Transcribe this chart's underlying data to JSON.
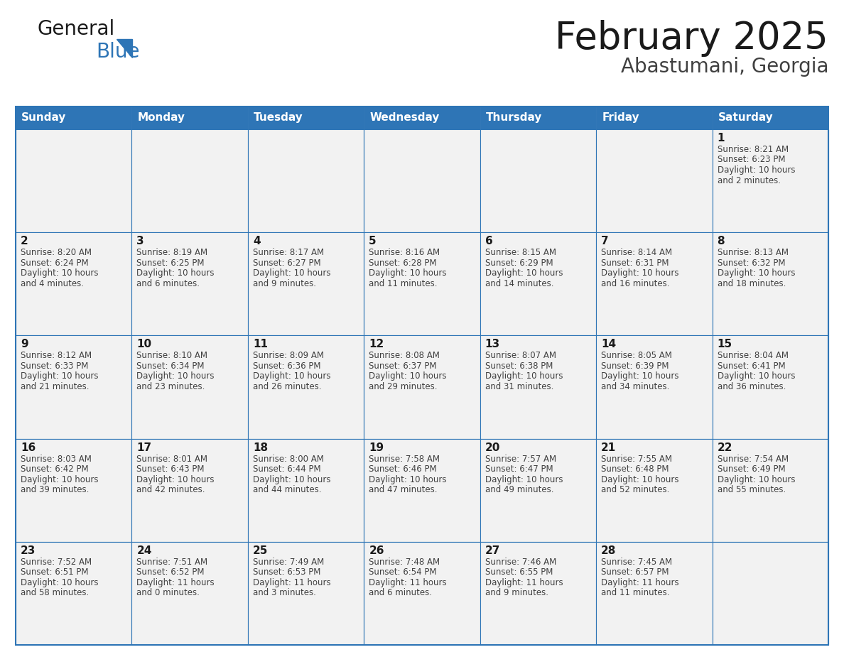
{
  "title": "February 2025",
  "subtitle": "Abastumani, Georgia",
  "days_of_week": [
    "Sunday",
    "Monday",
    "Tuesday",
    "Wednesday",
    "Thursday",
    "Friday",
    "Saturday"
  ],
  "header_bg": "#2E75B6",
  "header_text": "#FFFFFF",
  "cell_bg": "#F2F2F2",
  "cell_border": "#2E75B6",
  "day_num_color": "#1a1a1a",
  "info_text_color": "#404040",
  "title_color": "#1a1a1a",
  "subtitle_color": "#404040",
  "logo_general_color": "#1a1a1a",
  "logo_blue_color": "#2E75B6",
  "calendar_data": [
    [
      null,
      null,
      null,
      null,
      null,
      null,
      {
        "day": 1,
        "sunrise": "8:21 AM",
        "sunset": "6:23 PM",
        "daylight": "10 hours",
        "daylight2": "and 2 minutes."
      }
    ],
    [
      {
        "day": 2,
        "sunrise": "8:20 AM",
        "sunset": "6:24 PM",
        "daylight": "10 hours",
        "daylight2": "and 4 minutes."
      },
      {
        "day": 3,
        "sunrise": "8:19 AM",
        "sunset": "6:25 PM",
        "daylight": "10 hours",
        "daylight2": "and 6 minutes."
      },
      {
        "day": 4,
        "sunrise": "8:17 AM",
        "sunset": "6:27 PM",
        "daylight": "10 hours",
        "daylight2": "and 9 minutes."
      },
      {
        "day": 5,
        "sunrise": "8:16 AM",
        "sunset": "6:28 PM",
        "daylight": "10 hours",
        "daylight2": "and 11 minutes."
      },
      {
        "day": 6,
        "sunrise": "8:15 AM",
        "sunset": "6:29 PM",
        "daylight": "10 hours",
        "daylight2": "and 14 minutes."
      },
      {
        "day": 7,
        "sunrise": "8:14 AM",
        "sunset": "6:31 PM",
        "daylight": "10 hours",
        "daylight2": "and 16 minutes."
      },
      {
        "day": 8,
        "sunrise": "8:13 AM",
        "sunset": "6:32 PM",
        "daylight": "10 hours",
        "daylight2": "and 18 minutes."
      }
    ],
    [
      {
        "day": 9,
        "sunrise": "8:12 AM",
        "sunset": "6:33 PM",
        "daylight": "10 hours",
        "daylight2": "and 21 minutes."
      },
      {
        "day": 10,
        "sunrise": "8:10 AM",
        "sunset": "6:34 PM",
        "daylight": "10 hours",
        "daylight2": "and 23 minutes."
      },
      {
        "day": 11,
        "sunrise": "8:09 AM",
        "sunset": "6:36 PM",
        "daylight": "10 hours",
        "daylight2": "and 26 minutes."
      },
      {
        "day": 12,
        "sunrise": "8:08 AM",
        "sunset": "6:37 PM",
        "daylight": "10 hours",
        "daylight2": "and 29 minutes."
      },
      {
        "day": 13,
        "sunrise": "8:07 AM",
        "sunset": "6:38 PM",
        "daylight": "10 hours",
        "daylight2": "and 31 minutes."
      },
      {
        "day": 14,
        "sunrise": "8:05 AM",
        "sunset": "6:39 PM",
        "daylight": "10 hours",
        "daylight2": "and 34 minutes."
      },
      {
        "day": 15,
        "sunrise": "8:04 AM",
        "sunset": "6:41 PM",
        "daylight": "10 hours",
        "daylight2": "and 36 minutes."
      }
    ],
    [
      {
        "day": 16,
        "sunrise": "8:03 AM",
        "sunset": "6:42 PM",
        "daylight": "10 hours",
        "daylight2": "and 39 minutes."
      },
      {
        "day": 17,
        "sunrise": "8:01 AM",
        "sunset": "6:43 PM",
        "daylight": "10 hours",
        "daylight2": "and 42 minutes."
      },
      {
        "day": 18,
        "sunrise": "8:00 AM",
        "sunset": "6:44 PM",
        "daylight": "10 hours",
        "daylight2": "and 44 minutes."
      },
      {
        "day": 19,
        "sunrise": "7:58 AM",
        "sunset": "6:46 PM",
        "daylight": "10 hours",
        "daylight2": "and 47 minutes."
      },
      {
        "day": 20,
        "sunrise": "7:57 AM",
        "sunset": "6:47 PM",
        "daylight": "10 hours",
        "daylight2": "and 49 minutes."
      },
      {
        "day": 21,
        "sunrise": "7:55 AM",
        "sunset": "6:48 PM",
        "daylight": "10 hours",
        "daylight2": "and 52 minutes."
      },
      {
        "day": 22,
        "sunrise": "7:54 AM",
        "sunset": "6:49 PM",
        "daylight": "10 hours",
        "daylight2": "and 55 minutes."
      }
    ],
    [
      {
        "day": 23,
        "sunrise": "7:52 AM",
        "sunset": "6:51 PM",
        "daylight": "10 hours",
        "daylight2": "and 58 minutes."
      },
      {
        "day": 24,
        "sunrise": "7:51 AM",
        "sunset": "6:52 PM",
        "daylight": "11 hours",
        "daylight2": "and 0 minutes."
      },
      {
        "day": 25,
        "sunrise": "7:49 AM",
        "sunset": "6:53 PM",
        "daylight": "11 hours",
        "daylight2": "and 3 minutes."
      },
      {
        "day": 26,
        "sunrise": "7:48 AM",
        "sunset": "6:54 PM",
        "daylight": "11 hours",
        "daylight2": "and 6 minutes."
      },
      {
        "day": 27,
        "sunrise": "7:46 AM",
        "sunset": "6:55 PM",
        "daylight": "11 hours",
        "daylight2": "and 9 minutes."
      },
      {
        "day": 28,
        "sunrise": "7:45 AM",
        "sunset": "6:57 PM",
        "daylight": "11 hours",
        "daylight2": "and 11 minutes."
      },
      null
    ]
  ]
}
